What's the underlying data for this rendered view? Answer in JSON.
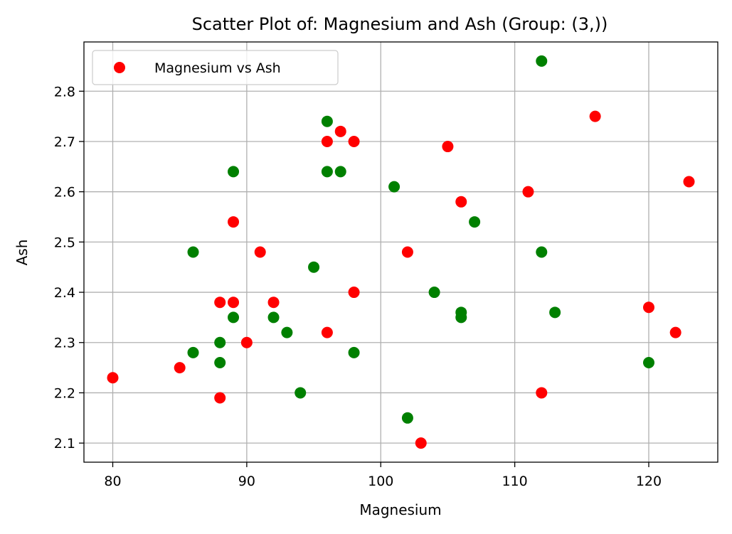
{
  "chart_data": {
    "type": "scatter",
    "title": "Scatter Plot of: Magnesium and Ash (Group: (3,))",
    "xlabel": "Magnesium",
    "ylabel": "Ash",
    "xlim": [
      77.85,
      125.15
    ],
    "ylim": [
      2.062,
      2.898
    ],
    "x_ticks": [
      80,
      90,
      100,
      110,
      120
    ],
    "y_ticks": [
      2.1,
      2.2,
      2.3,
      2.4,
      2.5,
      2.6,
      2.7,
      2.8
    ],
    "x_tick_labels": [
      "80",
      "90",
      "100",
      "110",
      "120"
    ],
    "y_tick_labels": [
      "2.1",
      "2.2",
      "2.3",
      "2.4",
      "2.5",
      "2.6",
      "2.7",
      "2.8"
    ],
    "grid": true,
    "legend": {
      "position": "upper-left",
      "entries": [
        {
          "label": "Magnesium vs Ash",
          "color": "#ff0000"
        }
      ]
    },
    "series": [
      {
        "name": "Magnesium vs Ash",
        "color": "#ff0000",
        "points": [
          {
            "x": 80,
            "y": 2.23
          },
          {
            "x": 85,
            "y": 2.25
          },
          {
            "x": 88,
            "y": 2.38
          },
          {
            "x": 88,
            "y": 2.19
          },
          {
            "x": 89,
            "y": 2.54
          },
          {
            "x": 89,
            "y": 2.38
          },
          {
            "x": 90,
            "y": 2.3
          },
          {
            "x": 91,
            "y": 2.48
          },
          {
            "x": 92,
            "y": 2.38
          },
          {
            "x": 96,
            "y": 2.7
          },
          {
            "x": 96,
            "y": 2.32
          },
          {
            "x": 97,
            "y": 2.72
          },
          {
            "x": 98,
            "y": 2.7
          },
          {
            "x": 98,
            "y": 2.4
          },
          {
            "x": 102,
            "y": 2.48
          },
          {
            "x": 103,
            "y": 2.1
          },
          {
            "x": 105,
            "y": 2.69
          },
          {
            "x": 106,
            "y": 2.58
          },
          {
            "x": 111,
            "y": 2.6
          },
          {
            "x": 112,
            "y": 2.2
          },
          {
            "x": 116,
            "y": 2.75
          },
          {
            "x": 120,
            "y": 2.37
          },
          {
            "x": 122,
            "y": 2.32
          },
          {
            "x": 123,
            "y": 2.62
          }
        ]
      },
      {
        "color": "#008000",
        "points": [
          {
            "x": 86,
            "y": 2.48
          },
          {
            "x": 86,
            "y": 2.28
          },
          {
            "x": 88,
            "y": 2.3
          },
          {
            "x": 88,
            "y": 2.26
          },
          {
            "x": 89,
            "y": 2.64
          },
          {
            "x": 89,
            "y": 2.35
          },
          {
            "x": 92,
            "y": 2.35
          },
          {
            "x": 93,
            "y": 2.32
          },
          {
            "x": 94,
            "y": 2.2
          },
          {
            "x": 95,
            "y": 2.45
          },
          {
            "x": 96,
            "y": 2.74
          },
          {
            "x": 96,
            "y": 2.64
          },
          {
            "x": 97,
            "y": 2.64
          },
          {
            "x": 98,
            "y": 2.28
          },
          {
            "x": 101,
            "y": 2.61
          },
          {
            "x": 102,
            "y": 2.15
          },
          {
            "x": 104,
            "y": 2.4
          },
          {
            "x": 106,
            "y": 2.36
          },
          {
            "x": 106,
            "y": 2.35
          },
          {
            "x": 107,
            "y": 2.54
          },
          {
            "x": 112,
            "y": 2.86
          },
          {
            "x": 112,
            "y": 2.48
          },
          {
            "x": 113,
            "y": 2.36
          },
          {
            "x": 120,
            "y": 2.26
          }
        ]
      }
    ]
  }
}
